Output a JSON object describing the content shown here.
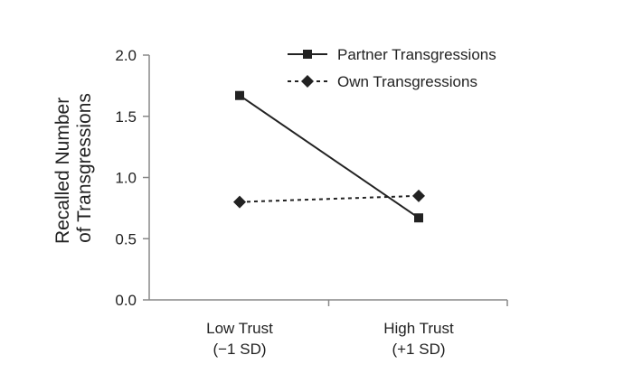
{
  "chart_data": {
    "type": "line",
    "categories": [
      [
        "Low Trust",
        "(−1 SD)"
      ],
      [
        "High Trust",
        "(+1 SD)"
      ]
    ],
    "ylabel": [
      "Recalled Number",
      "of Transgressions"
    ],
    "ylim": [
      0.0,
      2.0
    ],
    "yticks": [
      "0.0",
      "0.5",
      "1.0",
      "1.5",
      "2.0"
    ],
    "grid": false,
    "legend_position": "top-right",
    "series": [
      {
        "name": "Partner Transgressions",
        "values": [
          1.67,
          0.67
        ],
        "marker": "square",
        "line": "solid",
        "color": "#222222"
      },
      {
        "name": "Own Transgressions",
        "values": [
          0.8,
          0.85
        ],
        "marker": "diamond",
        "line": "dashed",
        "color": "#222222"
      }
    ]
  }
}
